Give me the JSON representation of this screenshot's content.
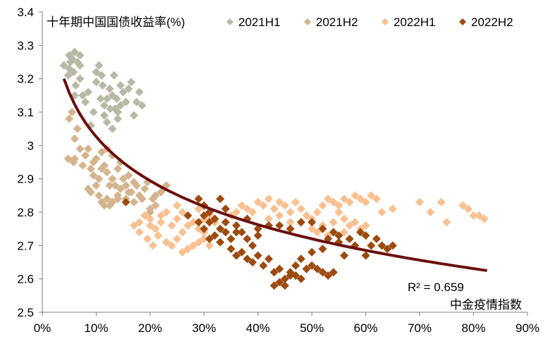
{
  "chart_data": {
    "type": "scatter",
    "title": "十年期中国国债收益率(%)",
    "xlabel": "中金疫情指数",
    "ylabel": "十年期中国国债收益率(%)",
    "xlim": [
      0,
      0.9
    ],
    "ylim": [
      2.5,
      3.4
    ],
    "x_ticks": [
      "0%",
      "10%",
      "20%",
      "30%",
      "40%",
      "50%",
      "60%",
      "70%",
      "80%",
      "90%"
    ],
    "y_ticks": [
      "2.5",
      "2.6",
      "2.7",
      "2.8",
      "2.9",
      "3",
      "3.1",
      "3.2",
      "3.3",
      "3.4"
    ],
    "legend_position": "top",
    "series": [
      {
        "name": "2021H1",
        "color": "#b9b8a7",
        "points": [
          [
            0.04,
            3.24
          ],
          [
            0.05,
            3.27
          ],
          [
            0.055,
            3.26
          ],
          [
            0.06,
            3.28
          ],
          [
            0.065,
            3.25
          ],
          [
            0.07,
            3.27
          ],
          [
            0.058,
            3.22
          ],
          [
            0.048,
            3.21
          ],
          [
            0.062,
            3.18
          ],
          [
            0.07,
            3.2
          ],
          [
            0.075,
            3.15
          ],
          [
            0.08,
            3.13
          ],
          [
            0.085,
            3.16
          ],
          [
            0.095,
            3.1
          ],
          [
            0.1,
            3.22
          ],
          [
            0.105,
            3.24
          ],
          [
            0.11,
            3.21
          ],
          [
            0.112,
            3.18
          ],
          [
            0.115,
            3.12
          ],
          [
            0.12,
            3.14
          ],
          [
            0.125,
            3.17
          ],
          [
            0.13,
            3.15
          ],
          [
            0.135,
            3.11
          ],
          [
            0.14,
            3.08
          ],
          [
            0.145,
            3.12
          ],
          [
            0.15,
            3.16
          ],
          [
            0.155,
            3.13
          ],
          [
            0.16,
            3.17
          ],
          [
            0.17,
            3.09
          ],
          [
            0.175,
            3.13
          ],
          [
            0.18,
            3.16
          ],
          [
            0.185,
            3.12
          ],
          [
            0.06,
            3.15
          ],
          [
            0.09,
            3.06
          ],
          [
            0.12,
            3.07
          ],
          [
            0.13,
            3.05
          ],
          [
            0.14,
            3.1
          ],
          [
            0.145,
            3.18
          ],
          [
            0.165,
            3.19
          ],
          [
            0.05,
            3.23
          ],
          [
            0.1,
            3.19
          ],
          [
            0.115,
            3.09
          ],
          [
            0.108,
            3.14
          ],
          [
            0.138,
            3.14
          ],
          [
            0.126,
            3.11
          ],
          [
            0.133,
            3.21
          ],
          [
            0.07,
            3.24
          ],
          [
            0.052,
            3.25
          ]
        ]
      },
      {
        "name": "2021H2",
        "color": "#d4b48e",
        "points": [
          [
            0.05,
            3.08
          ],
          [
            0.055,
            3.1
          ],
          [
            0.06,
            3.02
          ],
          [
            0.065,
            3.05
          ],
          [
            0.07,
            2.99
          ],
          [
            0.06,
            2.96
          ],
          [
            0.048,
            2.96
          ],
          [
            0.058,
            2.95
          ],
          [
            0.075,
            2.94
          ],
          [
            0.08,
            2.97
          ],
          [
            0.085,
            2.99
          ],
          [
            0.09,
            2.93
          ],
          [
            0.095,
            2.95
          ],
          [
            0.1,
            2.96
          ],
          [
            0.105,
            2.9
          ],
          [
            0.11,
            2.93
          ],
          [
            0.115,
            2.94
          ],
          [
            0.12,
            2.92
          ],
          [
            0.125,
            2.88
          ],
          [
            0.13,
            2.9
          ],
          [
            0.135,
            2.88
          ],
          [
            0.14,
            2.85
          ],
          [
            0.145,
            2.87
          ],
          [
            0.15,
            2.9
          ],
          [
            0.155,
            2.84
          ],
          [
            0.16,
            2.86
          ],
          [
            0.165,
            2.86
          ],
          [
            0.17,
            2.83
          ],
          [
            0.175,
            2.88
          ],
          [
            0.18,
            2.85
          ],
          [
            0.185,
            2.84
          ],
          [
            0.19,
            2.87
          ],
          [
            0.2,
            2.81
          ],
          [
            0.205,
            2.84
          ],
          [
            0.21,
            2.85
          ],
          [
            0.22,
            2.86
          ],
          [
            0.225,
            2.87
          ],
          [
            0.23,
            2.88
          ],
          [
            0.085,
            2.87
          ],
          [
            0.09,
            2.86
          ],
          [
            0.1,
            2.88
          ],
          [
            0.105,
            2.85
          ],
          [
            0.11,
            2.83
          ],
          [
            0.115,
            2.82
          ],
          [
            0.12,
            2.84
          ],
          [
            0.125,
            2.82
          ],
          [
            0.13,
            2.83
          ],
          [
            0.14,
            2.84
          ],
          [
            0.095,
            2.91
          ],
          [
            0.14,
            2.93
          ],
          [
            0.145,
            2.95
          ],
          [
            0.13,
            2.97
          ],
          [
            0.12,
            2.99
          ],
          [
            0.11,
            2.98
          ],
          [
            0.16,
            2.91
          ],
          [
            0.17,
            2.89
          ],
          [
            0.155,
            2.88
          ],
          [
            0.195,
            2.89
          ],
          [
            0.2,
            2.8
          ],
          [
            0.21,
            2.82
          ]
        ]
      },
      {
        "name": "2022H1",
        "color": "#fac090",
        "points": [
          [
            0.17,
            2.76
          ],
          [
            0.18,
            2.77
          ],
          [
            0.19,
            2.79
          ],
          [
            0.2,
            2.78
          ],
          [
            0.21,
            2.75
          ],
          [
            0.22,
            2.77
          ],
          [
            0.23,
            2.8
          ],
          [
            0.24,
            2.76
          ],
          [
            0.25,
            2.78
          ],
          [
            0.26,
            2.74
          ],
          [
            0.27,
            2.76
          ],
          [
            0.28,
            2.77
          ],
          [
            0.29,
            2.75
          ],
          [
            0.3,
            2.78
          ],
          [
            0.31,
            2.79
          ],
          [
            0.32,
            2.77
          ],
          [
            0.195,
            2.72
          ],
          [
            0.205,
            2.7
          ],
          [
            0.215,
            2.73
          ],
          [
            0.23,
            2.71
          ],
          [
            0.24,
            2.7
          ],
          [
            0.25,
            2.72
          ],
          [
            0.26,
            2.68
          ],
          [
            0.27,
            2.69
          ],
          [
            0.28,
            2.7
          ],
          [
            0.29,
            2.71
          ],
          [
            0.3,
            2.72
          ],
          [
            0.31,
            2.7
          ],
          [
            0.22,
            2.79
          ],
          [
            0.25,
            2.82
          ],
          [
            0.26,
            2.8
          ],
          [
            0.35,
            2.79
          ],
          [
            0.36,
            2.8
          ],
          [
            0.37,
            2.82
          ],
          [
            0.38,
            2.81
          ],
          [
            0.39,
            2.8
          ],
          [
            0.4,
            2.83
          ],
          [
            0.41,
            2.82
          ],
          [
            0.42,
            2.84
          ],
          [
            0.43,
            2.81
          ],
          [
            0.44,
            2.83
          ],
          [
            0.45,
            2.82
          ],
          [
            0.46,
            2.8
          ],
          [
            0.47,
            2.83
          ],
          [
            0.48,
            2.81
          ],
          [
            0.49,
            2.79
          ],
          [
            0.5,
            2.78
          ],
          [
            0.51,
            2.8
          ],
          [
            0.52,
            2.82
          ],
          [
            0.53,
            2.84
          ],
          [
            0.54,
            2.83
          ],
          [
            0.55,
            2.82
          ],
          [
            0.56,
            2.84
          ],
          [
            0.57,
            2.83
          ],
          [
            0.58,
            2.85
          ],
          [
            0.59,
            2.84
          ],
          [
            0.6,
            2.83
          ],
          [
            0.61,
            2.85
          ],
          [
            0.62,
            2.84
          ],
          [
            0.55,
            2.8
          ],
          [
            0.56,
            2.78
          ],
          [
            0.57,
            2.76
          ],
          [
            0.58,
            2.77
          ],
          [
            0.59,
            2.75
          ],
          [
            0.6,
            2.76
          ],
          [
            0.5,
            2.75
          ],
          [
            0.52,
            2.76
          ],
          [
            0.54,
            2.77
          ],
          [
            0.56,
            2.74
          ],
          [
            0.63,
            2.8
          ],
          [
            0.65,
            2.81
          ],
          [
            0.7,
            2.83
          ],
          [
            0.72,
            2.8
          ],
          [
            0.74,
            2.83
          ],
          [
            0.75,
            2.77
          ],
          [
            0.78,
            2.82
          ],
          [
            0.79,
            2.81
          ],
          [
            0.8,
            2.79
          ],
          [
            0.81,
            2.79
          ],
          [
            0.82,
            2.78
          ],
          [
            0.44,
            2.79
          ],
          [
            0.42,
            2.78
          ],
          [
            0.46,
            2.77
          ],
          [
            0.48,
            2.77
          ],
          [
            0.51,
            2.74
          ],
          [
            0.53,
            2.73
          ],
          [
            0.29,
            2.81
          ],
          [
            0.3,
            2.74
          ],
          [
            0.18,
            2.74
          ],
          [
            0.2,
            2.76
          ]
        ]
      },
      {
        "name": "2022H2",
        "color": "#9c4b10",
        "points": [
          [
            0.155,
            2.83
          ],
          [
            0.27,
            2.79
          ],
          [
            0.29,
            2.84
          ],
          [
            0.3,
            2.82
          ],
          [
            0.31,
            2.8
          ],
          [
            0.32,
            2.78
          ],
          [
            0.33,
            2.84
          ],
          [
            0.34,
            2.81
          ],
          [
            0.3,
            2.75
          ],
          [
            0.31,
            2.77
          ],
          [
            0.32,
            2.73
          ],
          [
            0.33,
            2.75
          ],
          [
            0.34,
            2.74
          ],
          [
            0.35,
            2.72
          ],
          [
            0.36,
            2.76
          ],
          [
            0.37,
            2.74
          ],
          [
            0.38,
            2.72
          ],
          [
            0.39,
            2.7
          ],
          [
            0.4,
            2.73
          ],
          [
            0.35,
            2.69
          ],
          [
            0.36,
            2.67
          ],
          [
            0.37,
            2.68
          ],
          [
            0.38,
            2.66
          ],
          [
            0.39,
            2.65
          ],
          [
            0.4,
            2.67
          ],
          [
            0.41,
            2.64
          ],
          [
            0.42,
            2.66
          ],
          [
            0.43,
            2.62
          ],
          [
            0.44,
            2.63
          ],
          [
            0.45,
            2.6
          ],
          [
            0.46,
            2.62
          ],
          [
            0.47,
            2.61
          ],
          [
            0.48,
            2.6
          ],
          [
            0.49,
            2.63
          ],
          [
            0.5,
            2.64
          ],
          [
            0.51,
            2.63
          ],
          [
            0.52,
            2.62
          ],
          [
            0.53,
            2.61
          ],
          [
            0.54,
            2.62
          ],
          [
            0.43,
            2.58
          ],
          [
            0.44,
            2.59
          ],
          [
            0.45,
            2.58
          ],
          [
            0.46,
            2.61
          ],
          [
            0.47,
            2.64
          ],
          [
            0.48,
            2.66
          ],
          [
            0.5,
            2.68
          ],
          [
            0.52,
            2.69
          ],
          [
            0.53,
            2.72
          ],
          [
            0.55,
            2.71
          ],
          [
            0.56,
            2.67
          ],
          [
            0.58,
            2.7
          ],
          [
            0.6,
            2.67
          ],
          [
            0.61,
            2.7
          ],
          [
            0.62,
            2.72
          ],
          [
            0.63,
            2.7
          ],
          [
            0.64,
            2.69
          ],
          [
            0.65,
            2.7
          ],
          [
            0.55,
            2.73
          ],
          [
            0.57,
            2.72
          ],
          [
            0.59,
            2.74
          ],
          [
            0.6,
            2.73
          ],
          [
            0.42,
            2.76
          ],
          [
            0.44,
            2.76
          ],
          [
            0.46,
            2.75
          ],
          [
            0.48,
            2.77
          ],
          [
            0.5,
            2.77
          ],
          [
            0.52,
            2.75
          ],
          [
            0.54,
            2.74
          ],
          [
            0.4,
            2.75
          ],
          [
            0.38,
            2.78
          ],
          [
            0.36,
            2.74
          ],
          [
            0.34,
            2.77
          ],
          [
            0.33,
            2.71
          ],
          [
            0.31,
            2.72
          ],
          [
            0.3,
            2.79
          ],
          [
            0.29,
            2.77
          ]
        ]
      }
    ],
    "trendline": {
      "type": "log",
      "color": "#6b0f0f",
      "x_range": [
        0.04,
        0.825
      ],
      "start_y": 3.2,
      "end_y": 2.625
    },
    "annotation": "R² = 0.659"
  }
}
